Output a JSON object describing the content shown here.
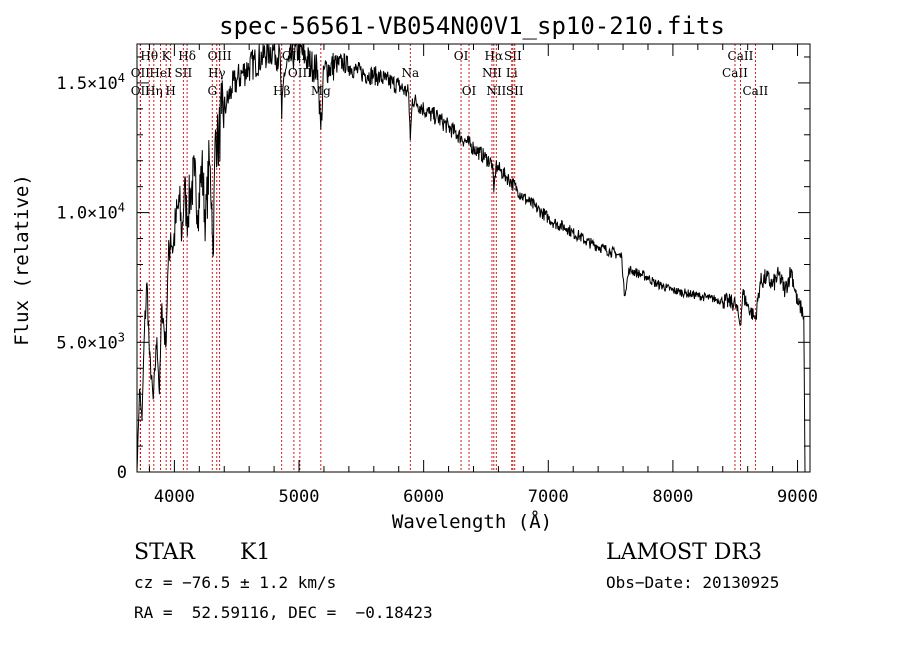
{
  "chart_data": {
    "type": "line",
    "title": "spec-56561-VB054N00V1_sp10-210.fits",
    "xlabel": "Wavelength (Å)",
    "ylabel": "Flux (relative)",
    "xlim": [
      3700,
      9100
    ],
    "ylim": [
      0,
      16500
    ],
    "xticks": [
      {
        "v": 4000,
        "label": "4000"
      },
      {
        "v": 5000,
        "label": "5000"
      },
      {
        "v": 6000,
        "label": "6000"
      },
      {
        "v": 7000,
        "label": "7000"
      },
      {
        "v": 8000,
        "label": "8000"
      },
      {
        "v": 9000,
        "label": "9000"
      }
    ],
    "yticks": [
      {
        "v": 0,
        "label": "0",
        "sup": ""
      },
      {
        "v": 5000,
        "label": "5.0×10",
        "sup": "3"
      },
      {
        "v": 10000,
        "label": "1.0×10",
        "sup": "4"
      },
      {
        "v": 15000,
        "label": "1.5×10",
        "sup": "4"
      }
    ],
    "spectrum": {
      "name": "flux",
      "x": [
        3700,
        3720,
        3740,
        3760,
        3780,
        3800,
        3830,
        3860,
        3880,
        3900,
        3930,
        3950,
        3970,
        3990,
        4010,
        4040,
        4060,
        4080,
        4100,
        4130,
        4160,
        4190,
        4220,
        4250,
        4280,
        4300,
        4310,
        4330,
        4350,
        4380,
        4420,
        4460,
        4500,
        4550,
        4600,
        4650,
        4700,
        4750,
        4800,
        4850,
        4861,
        4880,
        4920,
        4960,
        5000,
        5050,
        5100,
        5150,
        5175,
        5200,
        5250,
        5300,
        5350,
        5400,
        5450,
        5500,
        5550,
        5600,
        5650,
        5700,
        5750,
        5800,
        5850,
        5880,
        5893,
        5910,
        5950,
        6000,
        6050,
        6100,
        6150,
        6200,
        6250,
        6300,
        6350,
        6400,
        6450,
        6500,
        6550,
        6563,
        6580,
        6620,
        6660,
        6700,
        6750,
        6800,
        6850,
        6900,
        6950,
        7000,
        7050,
        7100,
        7150,
        7200,
        7250,
        7300,
        7350,
        7400,
        7450,
        7500,
        7550,
        7590,
        7610,
        7650,
        7700,
        7750,
        7800,
        7850,
        7900,
        7950,
        8000,
        8050,
        8100,
        8150,
        8200,
        8250,
        8300,
        8350,
        8400,
        8450,
        8500,
        8542,
        8560,
        8600,
        8662,
        8700,
        8750,
        8800,
        8850,
        8900,
        8950,
        9000,
        9030,
        9050,
        9060
      ],
      "y": [
        0,
        3200,
        2000,
        5500,
        7300,
        4500,
        2800,
        5200,
        3000,
        6500,
        4800,
        8000,
        9200,
        8600,
        9600,
        10400,
        9100,
        11000,
        9800,
        10800,
        11400,
        10100,
        11800,
        9600,
        12000,
        10400,
        8300,
        13200,
        12600,
        13800,
        14200,
        14800,
        15100,
        15400,
        15600,
        15800,
        16000,
        16200,
        16300,
        15900,
        13600,
        15400,
        15800,
        16100,
        16300,
        16000,
        15700,
        15500,
        13200,
        15500,
        15600,
        15700,
        15800,
        15650,
        15500,
        15400,
        15300,
        15300,
        15200,
        15100,
        15000,
        14900,
        14700,
        14600,
        12800,
        14400,
        14200,
        14000,
        13800,
        13700,
        13500,
        13300,
        13100,
        12900,
        12700,
        12500,
        12300,
        12100,
        11900,
        10800,
        11800,
        11600,
        11400,
        11200,
        10900,
        10600,
        10400,
        10200,
        10000,
        9800,
        9600,
        9500,
        9400,
        9200,
        9100,
        8900,
        8800,
        8700,
        8600,
        8500,
        8400,
        8300,
        6800,
        7800,
        7700,
        7600,
        7500,
        7300,
        7200,
        7100,
        7000,
        6950,
        6900,
        6850,
        6800,
        6750,
        6700,
        6650,
        6600,
        6550,
        6500,
        5700,
        6900,
        6400,
        5900,
        7300,
        7500,
        7200,
        7600,
        7000,
        7800,
        6500,
        6300,
        6000,
        0
      ]
    },
    "lines": [
      {
        "x": 3727,
        "label": "OII",
        "row": 1
      },
      {
        "x": 3727,
        "label": "OII",
        "row": 2
      },
      {
        "x": 3798,
        "label": "Hθ",
        "row": 0
      },
      {
        "x": 3835,
        "label": "Hη",
        "row": 2
      },
      {
        "x": 3889,
        "label": "HeI",
        "row": 1
      },
      {
        "x": 3934,
        "label": "K",
        "row": 0
      },
      {
        "x": 3970,
        "label": "H",
        "row": 2
      },
      {
        "x": 4072,
        "label": "SII",
        "row": 1
      },
      {
        "x": 4102,
        "label": "Hδ",
        "row": 0
      },
      {
        "x": 4304,
        "label": "G",
        "row": 2
      },
      {
        "x": 4340,
        "label": "Hγ",
        "row": 1
      },
      {
        "x": 4363,
        "label": "OIII",
        "row": 0
      },
      {
        "x": 4861,
        "label": "Hβ",
        "row": 2
      },
      {
        "x": 4959,
        "label": "OIII",
        "row": 0
      },
      {
        "x": 5007,
        "label": "OIII",
        "row": 1
      },
      {
        "x": 5175,
        "label": "Mg",
        "row": 2
      },
      {
        "x": 5893,
        "label": "Na",
        "row": 1
      },
      {
        "x": 6300,
        "label": "OI",
        "row": 0
      },
      {
        "x": 6364,
        "label": "OI",
        "row": 2
      },
      {
        "x": 6548,
        "label": "NII",
        "row": 1
      },
      {
        "x": 6563,
        "label": "Hα",
        "row": 0
      },
      {
        "x": 6583,
        "label": "NII",
        "row": 2
      },
      {
        "x": 6707,
        "label": "Li",
        "row": 1
      },
      {
        "x": 6716,
        "label": "SII",
        "row": 0
      },
      {
        "x": 6731,
        "label": "SII",
        "row": 2
      },
      {
        "x": 8498,
        "label": "CaII",
        "row": 1
      },
      {
        "x": 8542,
        "label": "CaII",
        "row": 0
      },
      {
        "x": 8662,
        "label": "CaII",
        "row": 2
      }
    ]
  },
  "info": {
    "class_label": "STAR",
    "subclass": "K1",
    "cz": "cz = −76.5 ± 1.2 km/s",
    "coords": "RA =  52.59116, DEC =  −0.18423",
    "survey": "LAMOST DR3",
    "obs_date": "Obs−Date: 20130925"
  }
}
